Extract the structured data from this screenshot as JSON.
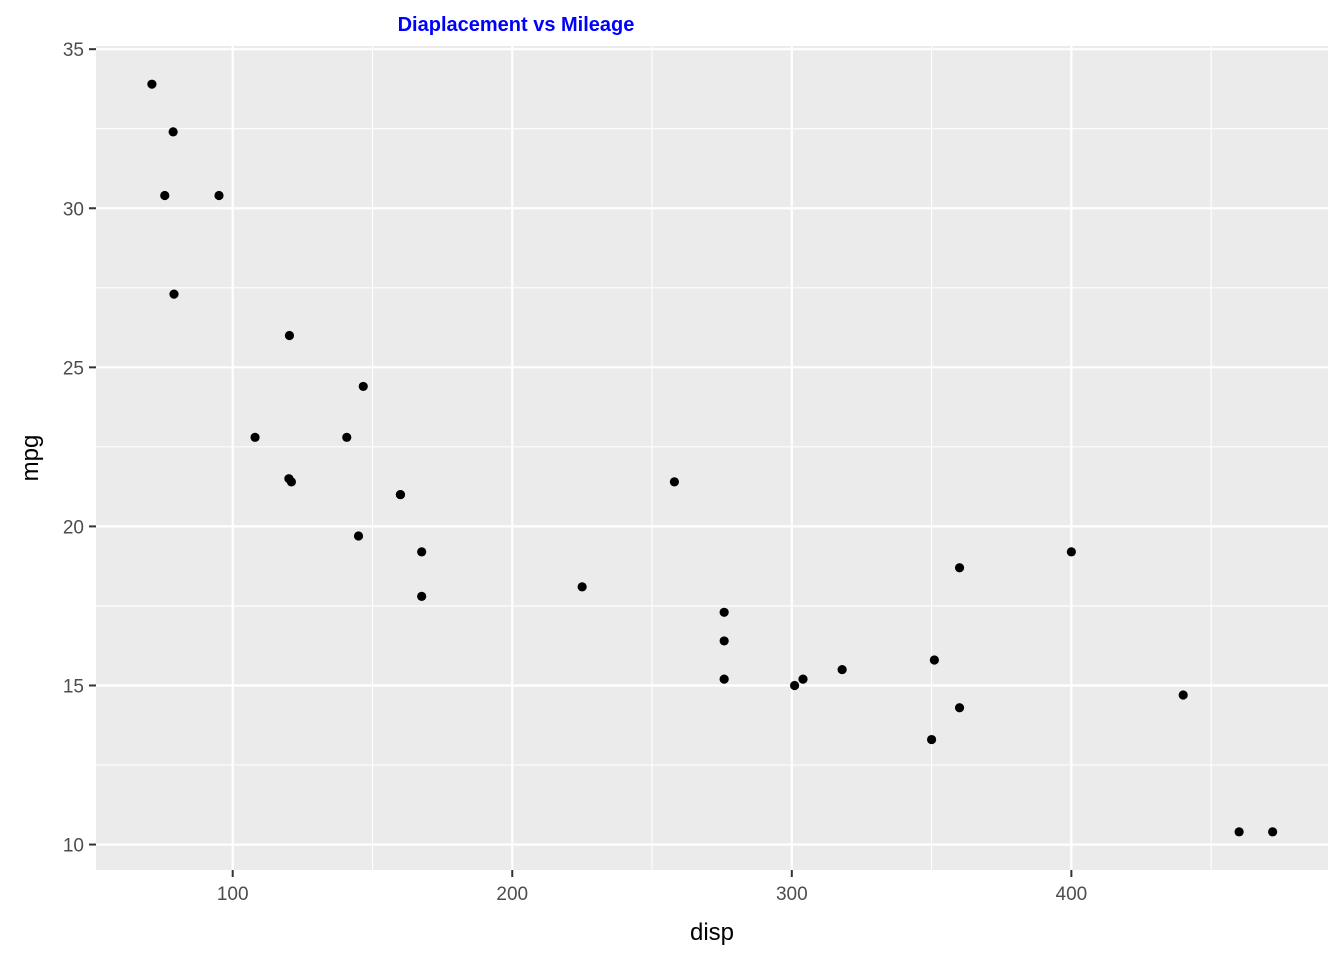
{
  "chart_data": {
    "type": "scatter",
    "title": "Diaplacement vs Mileage",
    "xlabel": "disp",
    "ylabel": "mpg",
    "xlim": [
      51.1,
      491.8
    ],
    "ylim": [
      9.2,
      35.1
    ],
    "x_ticks": [
      100,
      200,
      300,
      400
    ],
    "y_ticks": [
      10,
      15,
      20,
      25,
      30,
      35
    ],
    "x_tick_labels": [
      "100",
      "200",
      "300",
      "400"
    ],
    "y_tick_labels": [
      "10",
      "15",
      "20",
      "25",
      "30",
      "35"
    ],
    "grid": true,
    "legend": "none",
    "colors": {
      "panel": "#ebebeb",
      "grid": "#ffffff",
      "point": "#000000",
      "title": "#0000ff"
    },
    "points": [
      {
        "x": 160.0,
        "y": 21.0
      },
      {
        "x": 160.0,
        "y": 21.0
      },
      {
        "x": 108.0,
        "y": 22.8
      },
      {
        "x": 258.0,
        "y": 21.4
      },
      {
        "x": 360.0,
        "y": 18.7
      },
      {
        "x": 225.0,
        "y": 18.1
      },
      {
        "x": 360.0,
        "y": 14.3
      },
      {
        "x": 146.7,
        "y": 24.4
      },
      {
        "x": 140.8,
        "y": 22.8
      },
      {
        "x": 167.6,
        "y": 19.2
      },
      {
        "x": 167.6,
        "y": 17.8
      },
      {
        "x": 275.8,
        "y": 16.4
      },
      {
        "x": 275.8,
        "y": 17.3
      },
      {
        "x": 275.8,
        "y": 15.2
      },
      {
        "x": 472.0,
        "y": 10.4
      },
      {
        "x": 460.0,
        "y": 10.4
      },
      {
        "x": 440.0,
        "y": 14.7
      },
      {
        "x": 78.7,
        "y": 32.4
      },
      {
        "x": 75.7,
        "y": 30.4
      },
      {
        "x": 71.1,
        "y": 33.9
      },
      {
        "x": 120.1,
        "y": 21.5
      },
      {
        "x": 318.0,
        "y": 15.5
      },
      {
        "x": 304.0,
        "y": 15.2
      },
      {
        "x": 350.0,
        "y": 13.3
      },
      {
        "x": 400.0,
        "y": 19.2
      },
      {
        "x": 79.0,
        "y": 27.3
      },
      {
        "x": 120.3,
        "y": 26.0
      },
      {
        "x": 95.1,
        "y": 30.4
      },
      {
        "x": 351.0,
        "y": 15.8
      },
      {
        "x": 145.0,
        "y": 19.7
      },
      {
        "x": 301.0,
        "y": 15.0
      },
      {
        "x": 121.0,
        "y": 21.4
      }
    ]
  }
}
